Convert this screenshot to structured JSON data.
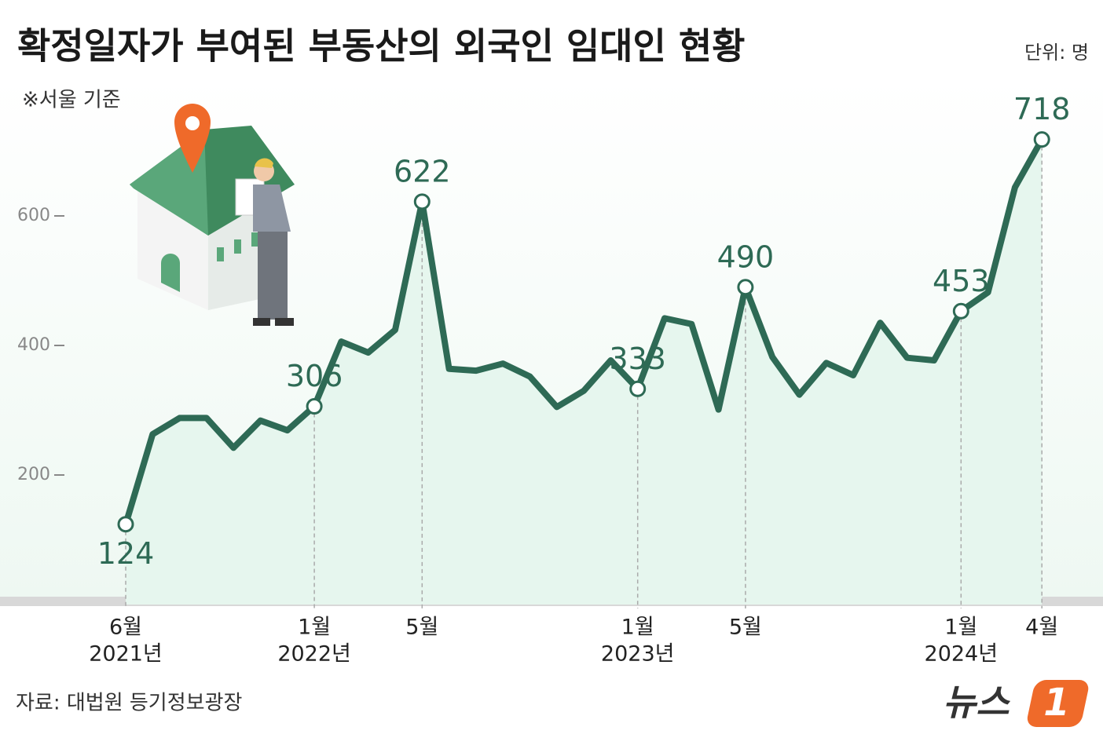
{
  "chart_data": {
    "type": "line",
    "title": "확정일자가 부여된 부동산의 외국인 임대인 현황",
    "unit_note": "단위: 명",
    "scope_note": "※서울 기준",
    "source": "자료: 대법원 등기정보광장",
    "logo_text": "뉴스",
    "logo_number": "1",
    "categories": [
      "6월",
      null,
      null,
      null,
      null,
      null,
      null,
      "1월",
      null,
      null,
      null,
      "5월",
      null,
      null,
      null,
      null,
      null,
      null,
      null,
      "1월",
      null,
      null,
      null,
      "5월",
      null,
      null,
      null,
      null,
      null,
      null,
      null,
      "1월",
      null,
      null,
      "4월"
    ],
    "category_years": [
      "2021년",
      null,
      null,
      null,
      null,
      null,
      null,
      "2022년",
      null,
      null,
      null,
      null,
      null,
      null,
      null,
      null,
      null,
      null,
      null,
      "2023년",
      null,
      null,
      null,
      null,
      null,
      null,
      null,
      null,
      null,
      null,
      null,
      "2024년",
      null,
      null,
      null
    ],
    "values": [
      124,
      263,
      288,
      288,
      242,
      284,
      269,
      306,
      406,
      389,
      424,
      622,
      364,
      361,
      372,
      352,
      305,
      330,
      377,
      333,
      442,
      433,
      301,
      490,
      382,
      324,
      373,
      354,
      435,
      381,
      377,
      453,
      482,
      644,
      718
    ],
    "color": "#2e6a55",
    "area_color": "#e6f6ee",
    "ylim": [
      0,
      800
    ],
    "yticks": [
      200,
      400,
      600
    ]
  }
}
